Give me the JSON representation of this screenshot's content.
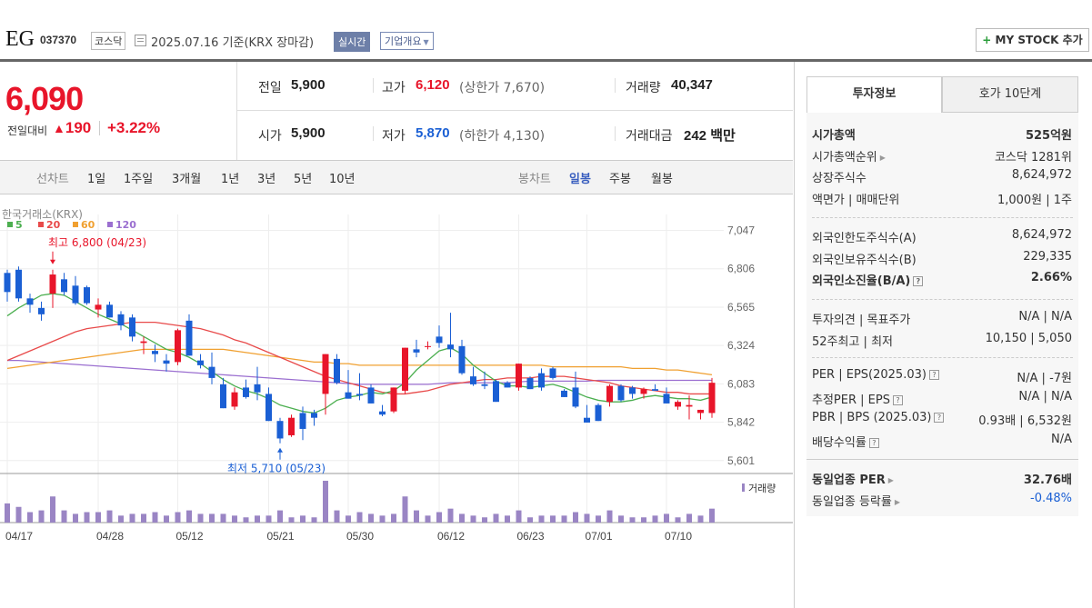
{
  "header": {
    "name": "EG",
    "code": "037370",
    "market": "코스닥",
    "date_text": "2025.07.16  기준(KRX 장마감)",
    "realtime": "실시간",
    "company_overview": "기업개요",
    "my_stock_label": "MY STOCK 추가"
  },
  "price": {
    "current": "6,090",
    "change_label": "전일대비",
    "change_abs": "190",
    "change_pct": "+3.22%",
    "direction": "up"
  },
  "quote": {
    "prev_label": "전일",
    "prev": "5,900",
    "open_label": "시가",
    "open": "5,900",
    "high_label": "고가",
    "high": "6,120",
    "upper_limit": "(상한가 7,670)",
    "low_label": "저가",
    "low": "5,870",
    "lower_limit": "(하한가 4,130)",
    "volume_label": "거래량",
    "volume": "40,347",
    "amount_label": "거래대금",
    "amount": "242 백만"
  },
  "period_bar": {
    "line_label": "선차트",
    "line_items": [
      "1일",
      "1주일",
      "3개월",
      "1년",
      "3년",
      "5년",
      "10년"
    ],
    "candle_label": "봉차트",
    "candle_items": [
      "일봉",
      "주봉",
      "월봉"
    ],
    "active_candle": "일봉"
  },
  "chart_data": {
    "type": "candlestick",
    "source": "한국거래소(KRX)",
    "legend": [
      {
        "name": "5",
        "color": "#4caf50"
      },
      {
        "name": "20",
        "color": "#e84a4a"
      },
      {
        "name": "60",
        "color": "#f0a030"
      },
      {
        "name": "120",
        "color": "#9b6fd0"
      }
    ],
    "ylim": [
      5520,
      7090
    ],
    "yticks": [
      "7,047",
      "6,806",
      "6,565",
      "6,324",
      "6,083",
      "5,842",
      "5,601"
    ],
    "ytick_values": [
      7047,
      6806,
      6565,
      6324,
      6083,
      5842,
      5601
    ],
    "x_tick_labels": [
      "04/17",
      "04/28",
      "05/12",
      "05/21",
      "05/30",
      "06/12",
      "06/23",
      "07/01",
      "07/10"
    ],
    "x_tick_index": [
      0,
      8,
      15,
      23,
      30,
      38,
      45,
      51,
      58
    ],
    "high_label": "최고 6,800 (04/23)",
    "high_index": 4,
    "low_label": "최저 5,710 (05/23)",
    "low_index": 24,
    "volume_label": "거래량",
    "candles": [
      [
        6780,
        6800,
        6600,
        6660
      ],
      [
        6800,
        6820,
        6600,
        6620
      ],
      [
        6620,
        6650,
        6530,
        6580
      ],
      [
        6560,
        6600,
        6480,
        6520
      ],
      [
        6650,
        6800,
        6560,
        6770
      ],
      [
        6740,
        6780,
        6640,
        6660
      ],
      [
        6700,
        6760,
        6580,
        6590
      ],
      [
        6690,
        6700,
        6580,
        6590
      ],
      [
        6550,
        6620,
        6500,
        6580
      ],
      [
        6580,
        6600,
        6500,
        6500
      ],
      [
        6520,
        6540,
        6420,
        6450
      ],
      [
        6500,
        6520,
        6350,
        6380
      ],
      [
        6340,
        6380,
        6270,
        6350
      ],
      [
        6290,
        6330,
        6220,
        6270
      ],
      [
        6230,
        6270,
        6160,
        6210
      ],
      [
        6220,
        6430,
        6200,
        6420
      ],
      [
        6480,
        6520,
        6260,
        6260
      ],
      [
        6230,
        6270,
        6180,
        6200
      ],
      [
        6190,
        6280,
        6080,
        6120
      ],
      [
        6080,
        6120,
        5930,
        5930
      ],
      [
        5940,
        6060,
        5920,
        6030
      ],
      [
        6060,
        6110,
        5990,
        6000
      ],
      [
        6080,
        6190,
        5980,
        6030
      ],
      [
        6020,
        6060,
        5850,
        5850
      ],
      [
        5850,
        5870,
        5710,
        5740
      ],
      [
        5760,
        5890,
        5750,
        5870
      ],
      [
        5900,
        5940,
        5730,
        5800
      ],
      [
        5900,
        5920,
        5820,
        5870
      ],
      [
        6020,
        6270,
        5890,
        6270
      ],
      [
        6240,
        6270,
        6080,
        6090
      ],
      [
        6030,
        6170,
        5990,
        5990
      ],
      [
        6020,
        6150,
        5980,
        6010
      ],
      [
        6060,
        6080,
        5960,
        5960
      ],
      [
        5910,
        5950,
        5880,
        5890
      ],
      [
        5910,
        6060,
        5900,
        6060
      ],
      [
        6040,
        6310,
        6020,
        6310
      ],
      [
        6300,
        6360,
        6250,
        6280
      ],
      [
        6320,
        6350,
        6300,
        6320
      ],
      [
        6380,
        6450,
        6310,
        6340
      ],
      [
        6330,
        6530,
        6250,
        6300
      ],
      [
        6320,
        6360,
        6140,
        6150
      ],
      [
        6130,
        6190,
        6070,
        6080
      ],
      [
        6080,
        6160,
        6050,
        6070
      ],
      [
        6100,
        6110,
        5970,
        5970
      ],
      [
        6090,
        6100,
        6060,
        6060
      ],
      [
        6060,
        6210,
        6040,
        6210
      ],
      [
        6120,
        6130,
        6050,
        6050
      ],
      [
        6150,
        6180,
        6040,
        6060
      ],
      [
        6180,
        6190,
        6110,
        6120
      ],
      [
        6040,
        6050,
        6000,
        6000
      ],
      [
        6060,
        6160,
        5930,
        5940
      ],
      [
        5870,
        5950,
        5840,
        5840
      ],
      [
        5950,
        5960,
        5850,
        5850
      ],
      [
        5970,
        6080,
        5940,
        6070
      ],
      [
        6070,
        6080,
        5970,
        5980
      ],
      [
        6060,
        6070,
        5990,
        6020
      ],
      [
        6020,
        6060,
        5990,
        6050
      ],
      [
        6050,
        6080,
        6040,
        6040
      ],
      [
        6020,
        6060,
        5960,
        5960
      ],
      [
        5940,
        5980,
        5920,
        5970
      ],
      [
        5940,
        6010,
        5860,
        5950
      ],
      [
        5900,
        5920,
        5860,
        5920
      ],
      [
        5900,
        6120,
        5870,
        6090
      ]
    ],
    "ma5": [
      6510,
      6560,
      6600,
      6640,
      6650,
      6640,
      6600,
      6560,
      6520,
      6490,
      6460,
      6420,
      6380,
      6340,
      6300,
      6280,
      6250,
      6210,
      6160,
      6110,
      6070,
      6040,
      6020,
      5990,
      5950,
      5930,
      5910,
      5900,
      5930,
      5980,
      6000,
      6010,
      6030,
      6020,
      6040,
      6090,
      6170,
      6230,
      6290,
      6310,
      6270,
      6200,
      6150,
      6100,
      6070,
      6070,
      6060,
      6070,
      6080,
      6060,
      6030,
      6000,
      5980,
      5970,
      5970,
      5980,
      6000,
      6010,
      6000,
      5990,
      5990,
      5980,
      6000
    ],
    "ma20": [
      6230,
      6260,
      6290,
      6320,
      6350,
      6380,
      6410,
      6430,
      6440,
      6450,
      6460,
      6470,
      6470,
      6470,
      6460,
      6450,
      6440,
      6430,
      6410,
      6390,
      6360,
      6340,
      6310,
      6280,
      6250,
      6220,
      6190,
      6160,
      6130,
      6110,
      6090,
      6070,
      6050,
      6030,
      6020,
      6020,
      6030,
      6040,
      6060,
      6080,
      6090,
      6100,
      6110,
      6110,
      6120,
      6120,
      6120,
      6130,
      6130,
      6130,
      6120,
      6110,
      6100,
      6090,
      6070,
      6060,
      6050,
      6040,
      6030,
      6030,
      6020,
      6020,
      6020
    ],
    "ma60": [
      6180,
      6190,
      6200,
      6210,
      6220,
      6230,
      6240,
      6250,
      6260,
      6270,
      6280,
      6290,
      6300,
      6300,
      6300,
      6300,
      6300,
      6300,
      6300,
      6300,
      6290,
      6280,
      6270,
      6260,
      6250,
      6240,
      6230,
      6220,
      6220,
      6210,
      6210,
      6200,
      6200,
      6200,
      6200,
      6200,
      6200,
      6200,
      6200,
      6200,
      6200,
      6200,
      6200,
      6200,
      6200,
      6200,
      6200,
      6200,
      6190,
      6190,
      6190,
      6190,
      6190,
      6190,
      6190,
      6180,
      6180,
      6180,
      6170,
      6170,
      6160,
      6150,
      6140
    ],
    "ma120": [
      6230,
      6230,
      6225,
      6220,
      6215,
      6210,
      6205,
      6200,
      6195,
      6190,
      6185,
      6180,
      6175,
      6170,
      6165,
      6160,
      6155,
      6150,
      6145,
      6140,
      6135,
      6130,
      6125,
      6120,
      6115,
      6110,
      6105,
      6100,
      6095,
      6090,
      6085,
      6080,
      6080,
      6080,
      6080,
      6080,
      6080,
      6080,
      6085,
      6090,
      6090,
      6090,
      6090,
      6090,
      6090,
      6095,
      6100,
      6100,
      6100,
      6100,
      6100,
      6100,
      6105,
      6105,
      6105,
      6105,
      6105,
      6105,
      6105,
      6105,
      6105,
      6105,
      6105
    ],
    "volumes": [
      22,
      18,
      12,
      14,
      30,
      14,
      10,
      12,
      12,
      14,
      8,
      10,
      10,
      12,
      8,
      12,
      14,
      10,
      10,
      10,
      8,
      6,
      8,
      8,
      14,
      6,
      8,
      6,
      48,
      14,
      8,
      12,
      10,
      8,
      10,
      30,
      14,
      8,
      12,
      16,
      10,
      8,
      6,
      10,
      8,
      14,
      6,
      8,
      8,
      8,
      12,
      10,
      8,
      14,
      8,
      6,
      6,
      8,
      10,
      6,
      10,
      8,
      16
    ]
  },
  "side": {
    "tab_active": "투자정보",
    "tab_other": "호가 10단계",
    "rows1": [
      {
        "label": "시가총액",
        "value": "525억원",
        "bold": true
      },
      {
        "label": "시가총액순위",
        "value": "코스닥 1281위",
        "arrow": true
      },
      {
        "label": "상장주식수",
        "value": "8,624,972"
      },
      {
        "label": "액면가 | 매매단위",
        "value": "1,000원 | 1주"
      }
    ],
    "rows2": [
      {
        "label": "외국인한도주식수(A)",
        "value": "8,624,972"
      },
      {
        "label": "외국인보유주식수(B)",
        "value": "229,335"
      },
      {
        "label": "외국인소진율(B/A)",
        "value": "2.66%",
        "bold": true,
        "q": true
      }
    ],
    "rows3": [
      {
        "label": "투자의견 | 목표주가",
        "value": "N/A | N/A"
      },
      {
        "label": "52주최고 | 최저",
        "value": "10,150 | 5,050"
      }
    ],
    "rows4": [
      {
        "label": "PER | EPS(2025.03)",
        "value": "N/A | -7원",
        "q": true
      },
      {
        "label": "추정PER | EPS",
        "value": "N/A | N/A",
        "q": true
      },
      {
        "label": "PBR | BPS (2025.03)",
        "value": "0.93배 | 6,532원",
        "q": true
      },
      {
        "label": "배당수익률",
        "value": "N/A",
        "q": true
      }
    ],
    "rows5": [
      {
        "label": "동일업종 PER",
        "value": "32.76배",
        "bold": true,
        "arrow": true
      },
      {
        "label": "동일업종 등락률",
        "value": "-0.48%",
        "arrow": true,
        "blue": true
      }
    ]
  }
}
